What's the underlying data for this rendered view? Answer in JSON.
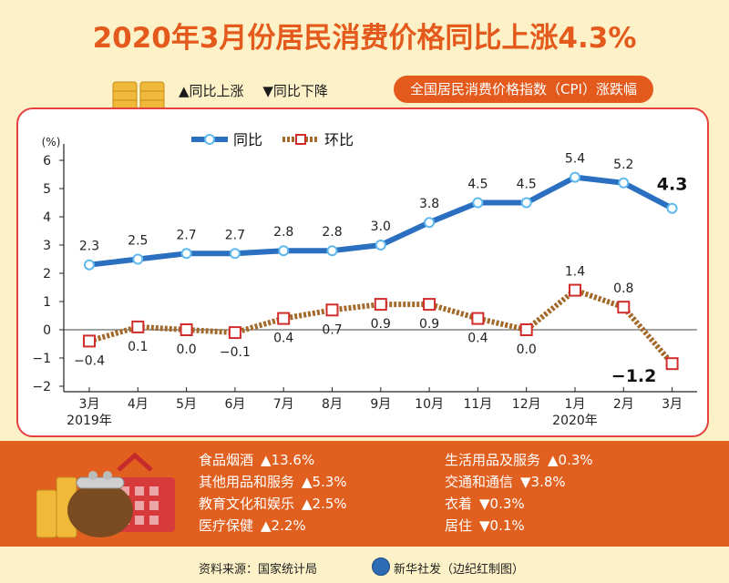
{
  "title": "2020年3月份居民消费价格同比上涨4.3%",
  "legend_arrows": {
    "up": "▲同比上涨",
    "down": "▼同比下降"
  },
  "badge": "全国居民消费价格指数（CPI）涨跌幅",
  "chart_data": {
    "type": "line",
    "unit_label": "(%)",
    "categories": [
      "3月",
      "4月",
      "5月",
      "6月",
      "7月",
      "8月",
      "9月",
      "10月",
      "11月",
      "12月",
      "1月",
      "2月",
      "3月"
    ],
    "year_labels": [
      {
        "index": 0,
        "text": "2019年"
      },
      {
        "index": 10,
        "text": "2020年"
      }
    ],
    "ylim": [
      -2,
      6
    ],
    "yticks": [
      "6",
      "5",
      "4",
      "3",
      "2",
      "1",
      "0",
      "−1",
      "−2"
    ],
    "ytick_values": [
      6,
      5,
      4,
      3,
      2,
      1,
      0,
      -1,
      -2
    ],
    "series": [
      {
        "name": "同比",
        "color": "#2a6fc0",
        "values": [
          2.3,
          2.5,
          2.7,
          2.7,
          2.8,
          2.8,
          3.0,
          3.8,
          4.5,
          4.5,
          5.4,
          5.2,
          4.3
        ],
        "labels": [
          "2.3",
          "2.5",
          "2.7",
          "2.7",
          "2.8",
          "2.8",
          "3.0",
          "3.8",
          "4.5",
          "4.5",
          "5.4",
          "5.2",
          "4.3"
        ]
      },
      {
        "name": "环比",
        "color": "#a2692a",
        "values": [
          -0.4,
          0.1,
          0.0,
          -0.1,
          0.4,
          0.7,
          0.9,
          0.9,
          0.4,
          0.0,
          1.4,
          0.8,
          -1.2
        ],
        "labels": [
          "−0.4",
          "0.1",
          "0.0",
          "−0.1",
          "0.4",
          "0.7",
          "0.9",
          "0.9",
          "0.4",
          "0.0",
          "1.4",
          "0.8",
          "−1.2"
        ]
      }
    ]
  },
  "categories_left": [
    {
      "label": "食品烟酒",
      "value": "▲13.6%"
    },
    {
      "label": "其他用品和服务",
      "value": "▲5.3%"
    },
    {
      "label": "教育文化和娱乐",
      "value": "▲2.5%"
    },
    {
      "label": "医疗保健",
      "value": "▲2.2%"
    }
  ],
  "categories_right": [
    {
      "label": "生活用品及服务",
      "value": "▲0.3%"
    },
    {
      "label": "交通和通信",
      "value": "▼3.8%"
    },
    {
      "label": "衣着",
      "value": "▼0.3%"
    },
    {
      "label": "居住",
      "value": "▼0.1%"
    }
  ],
  "footer": {
    "source": "资料来源：国家统计局",
    "credit": "新华社发（边纪红制图）"
  },
  "colors": {
    "accent": "#e35a1c",
    "panel": "#e2601f",
    "border": "#e64040",
    "background": "#fdf1c7"
  }
}
